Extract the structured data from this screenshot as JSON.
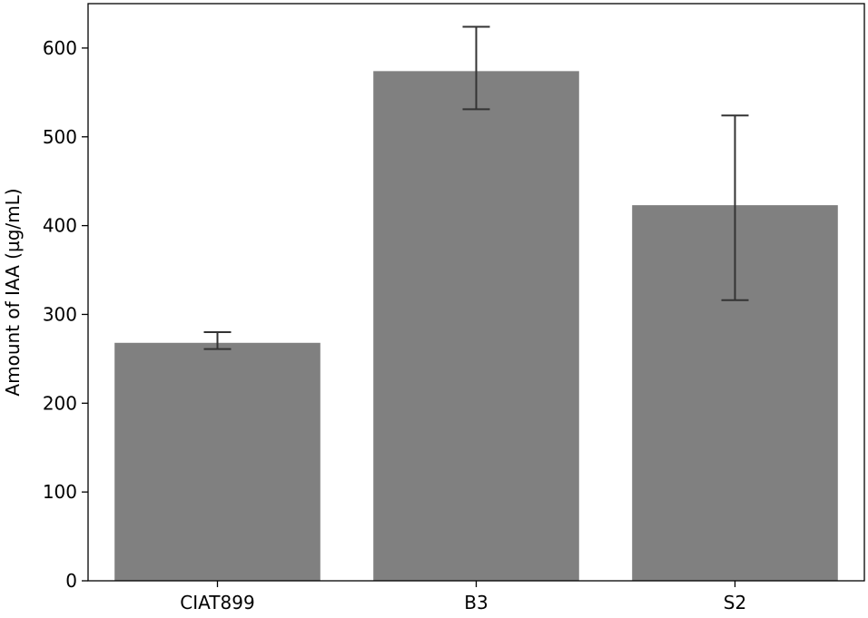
{
  "chart_data": {
    "type": "bar",
    "title": "",
    "xlabel": "",
    "ylabel": "Amount of IAA (µg/mL)",
    "categories": [
      "CIAT899",
      "B3",
      "S2"
    ],
    "values": [
      268,
      574,
      423
    ],
    "error_low": [
      261,
      531,
      316
    ],
    "error_high": [
      280,
      624,
      524
    ],
    "ylim": [
      0,
      650
    ],
    "yticks": [
      0,
      100,
      200,
      300,
      400,
      500,
      600
    ],
    "grid": false,
    "legend": "none",
    "colors": {
      "bar": "#808080",
      "errorbar": "#333333",
      "axis": "#000000"
    }
  }
}
